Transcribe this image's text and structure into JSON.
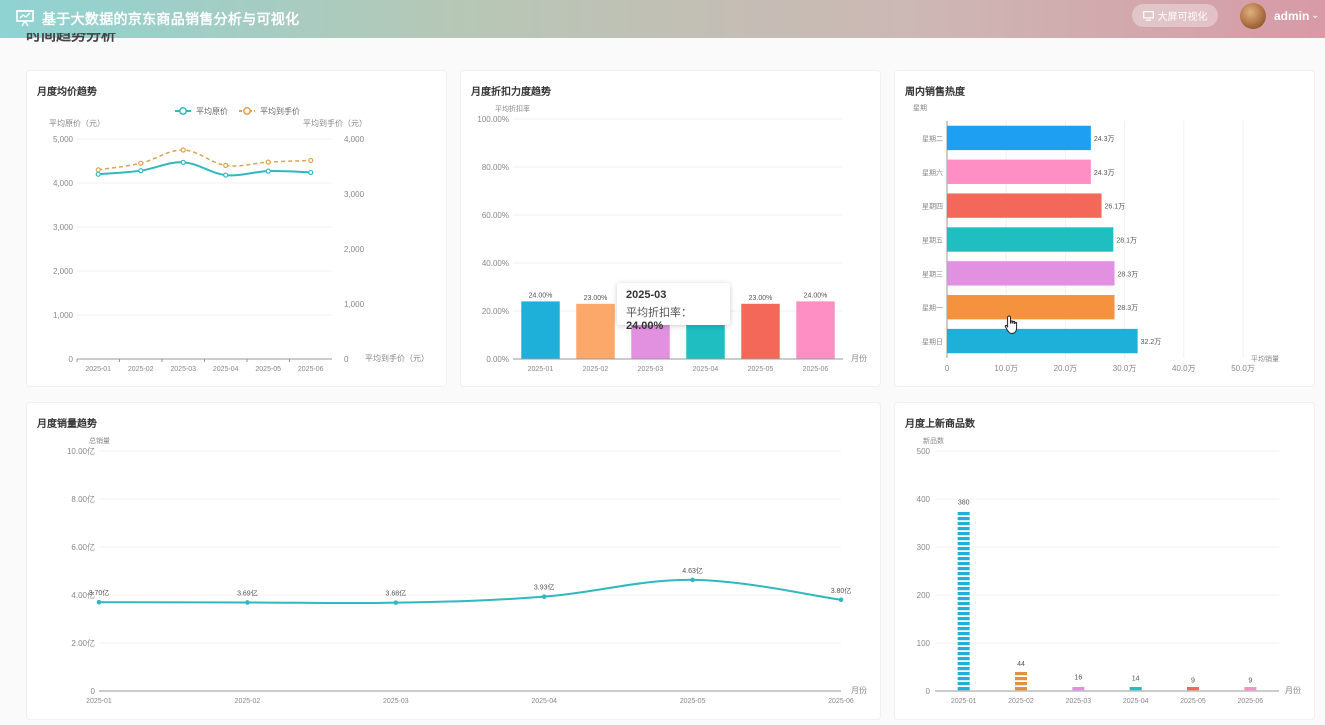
{
  "header": {
    "app_title": "基于大数据的京东商品销售分析与可视化",
    "bigscreen_label": "大屏可视化",
    "user_name": "admin"
  },
  "section_title": "时间趋势分析",
  "colors": {
    "teal": "#2fb8be",
    "orange": "#e0a050",
    "palette": [
      "#1eb0d8",
      "#fba86a",
      "#e291e0",
      "#1fbec0",
      "#f4685a",
      "#fd8fc4"
    ]
  },
  "tooltip": {
    "title": "2025-03",
    "label": "平均折扣率：",
    "value": "24.00%"
  },
  "chart_data": [
    {
      "id": "price",
      "type": "line",
      "title": "月度均价趋势",
      "categories": [
        "2025-01",
        "2025-02",
        "2025-03",
        "2025-04",
        "2025-05",
        "2025-06"
      ],
      "series": [
        {
          "name": "平均原价",
          "axis": "left",
          "values": [
            4200,
            4280,
            4470,
            4180,
            4270,
            4240
          ]
        },
        {
          "name": "平均到手价",
          "axis": "right",
          "values": [
            3440,
            3560,
            3800,
            3520,
            3580,
            3610
          ]
        }
      ],
      "ylabel_left": "平均原价（元）",
      "ylabel_right": "平均到手价（元）",
      "ylim_left": [
        0,
        5000
      ],
      "ylim_right": [
        0,
        4000
      ],
      "yticks_left": [
        "0",
        "1,000",
        "2,000",
        "3,000",
        "4,000",
        "5,000"
      ],
      "yticks_right": [
        "0",
        "1,000",
        "2,000",
        "3,000",
        "4,000"
      ],
      "legend": "top-center"
    },
    {
      "id": "discount",
      "type": "bar",
      "title": "月度折扣力度趋势",
      "categories": [
        "2025-01",
        "2025-02",
        "2025-03",
        "2025-04",
        "2025-05",
        "2025-06"
      ],
      "values": [
        24.0,
        23.0,
        24.0,
        24.0,
        23.0,
        24.0
      ],
      "labels": [
        "24.00%",
        "23.00%",
        "",
        "",
        "23.00%",
        "24.00%"
      ],
      "ylabel": "平均折扣率",
      "xlabel": "月份",
      "ylim": [
        0,
        100
      ],
      "yticks": [
        "0.00%",
        "20.00%",
        "40.00%",
        "60.00%",
        "80.00%",
        "100.00%"
      ]
    },
    {
      "id": "weekday",
      "type": "bar",
      "orientation": "horizontal",
      "title": "周内销售热度",
      "categories": [
        "星期二",
        "星期六",
        "星期四",
        "星期五",
        "星期三",
        "星期一",
        "星期日"
      ],
      "values": [
        24.3,
        24.3,
        26.1,
        28.1,
        28.3,
        28.3,
        32.2
      ],
      "labels": [
        "24.3万",
        "24.3万",
        "26.1万",
        "28.1万",
        "28.3万",
        "28.3万",
        "32.2万"
      ],
      "colors": [
        "#1e9ff2",
        "#fd8fc4",
        "#f4685a",
        "#1fbec0",
        "#e291e0",
        "#f5923e",
        "#1eb0d8"
      ],
      "ylabel": "星期",
      "xlabel": "平均销量",
      "xlim": [
        0,
        50
      ],
      "xticks": [
        "0",
        "10.0万",
        "20.0万",
        "30.0万",
        "40.0万",
        "50.0万"
      ]
    },
    {
      "id": "sales",
      "type": "line",
      "title": "月度销量趋势",
      "categories": [
        "2025-01",
        "2025-02",
        "2025-03",
        "2025-04",
        "2025-05",
        "2025-06"
      ],
      "values": [
        3.7,
        3.69,
        3.68,
        3.93,
        4.63,
        3.8
      ],
      "labels": [
        "3.70亿",
        "3.69亿",
        "3.68亿",
        "3.93亿",
        "4.63亿",
        "3.80亿"
      ],
      "ylabel": "总销量",
      "xlabel": "月份",
      "ylim": [
        0,
        10
      ],
      "yticks": [
        "0",
        "2.00亿",
        "4.00亿",
        "6.00亿",
        "8.00亿",
        "10.00亿"
      ]
    },
    {
      "id": "newitems",
      "type": "bar",
      "title": "月度上新商品数",
      "categories": [
        "2025-01",
        "2025-02",
        "2025-03",
        "2025-04",
        "2025-05",
        "2025-06"
      ],
      "values": [
        380,
        44,
        16,
        14,
        9,
        9
      ],
      "labels": [
        "380",
        "44",
        "16",
        "14",
        "9",
        "9"
      ],
      "ylabel": "新品数",
      "xlabel": "月份",
      "ylim": [
        0,
        500
      ],
      "yticks": [
        "0",
        "100",
        "200",
        "300",
        "400",
        "500"
      ]
    }
  ]
}
